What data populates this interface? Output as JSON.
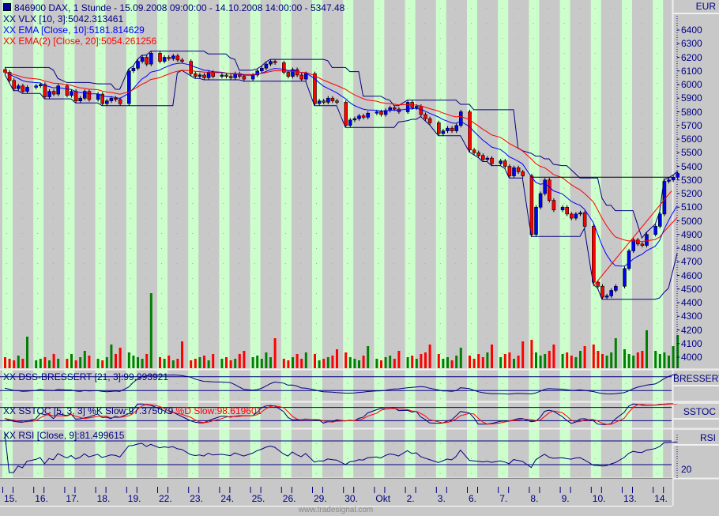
{
  "header": {
    "title": "846900  DAX, 1 Stunde - 15.09.2008 09:00:00 - 14.10.2008 14:00:00 - 5347.48",
    "vlx": "VLX [10, 3]:5042.313461",
    "ema": "EMA [Close, 10]:5181.814629",
    "ema2": "EMA(2) [Close, 20]:5054.261256",
    "prefix": "XX"
  },
  "panels": {
    "dss_label": "DSS-BRESSERT [21, 3]:99.993921",
    "sstoc_label_k": "SSTOC [5, 3, 3] %K Slow:97.375079",
    "sstoc_label_d": " %D Slow:98.619601",
    "rsi_label": "RSI [Close, 9]:81.499615",
    "right_dss": "BRESSERT",
    "right_sstoc": "SSTOC",
    "right_rsi": "RSI",
    "rsi_tick": "20"
  },
  "price_axis": {
    "currency": "EUR",
    "ticks": [
      "6400",
      "6300",
      "6200",
      "6100",
      "6000",
      "5900",
      "5800",
      "5700",
      "5600",
      "5500",
      "5400",
      "5300",
      "5200",
      "5100",
      "5000",
      "4900",
      "4800",
      "4700",
      "4600",
      "4500",
      "4400",
      "4300",
      "4200",
      "4100",
      "4000"
    ]
  },
  "footer": "www.tradesignal.com",
  "colors": {
    "background": "#c8c8c8",
    "stripe": "#ccffcc",
    "navy": "#000080",
    "ema": "#0000ff",
    "ema2": "#ff0000",
    "up": "#0000ff",
    "down": "#ff0000"
  },
  "chart_data": {
    "type": "candlestick",
    "title": "846900  DAX, 1 Stunde - 15.09.2008 09:00:00 - 14.10.2008 14:00:00 - 5347.48",
    "x_tick_labels": [
      "15.",
      "16.",
      "17.",
      "18.",
      "19.",
      "22.",
      "23.",
      "24.",
      "25.",
      "26.",
      "29.",
      "30.",
      "Okt",
      "2.",
      "3.",
      "6.",
      "7.",
      "8.",
      "9.",
      "10.",
      "13.",
      "14."
    ],
    "ylim": [
      3950,
      6500
    ],
    "bars_per_day": 6,
    "close": [
      6090,
      6030,
      5970,
      5990,
      5950,
      5980,
      5990,
      6000,
      5910,
      5950,
      5930,
      5990,
      5920,
      5950,
      5880,
      5900,
      5950,
      5890,
      5930,
      5860,
      5880,
      5900,
      5890,
      5860,
      6100,
      6120,
      6170,
      6200,
      6150,
      6230,
      6170,
      6200,
      6190,
      6210,
      6180,
      6170,
      6080,
      6060,
      6070,
      6050,
      6090,
      6060,
      6070,
      6060,
      6050,
      6080,
      6060,
      6040,
      6070,
      6100,
      6120,
      6150,
      6170,
      6160,
      6090,
      6060,
      6110,
      6070,
      6040,
      6080,
      5860,
      5880,
      5870,
      5900,
      5880,
      5870,
      5700,
      5740,
      5750,
      5770,
      5760,
      5790,
      5800,
      5780,
      5810,
      5830,
      5820,
      5800,
      5870,
      5830,
      5840,
      5780,
      5750,
      5720,
      5640,
      5660,
      5680,
      5660,
      5700,
      5800,
      5520,
      5500,
      5480,
      5450,
      5460,
      5420,
      5440,
      5400,
      5330,
      5390,
      5360,
      5330,
      4900,
      5100,
      5200,
      5300,
      5150,
      5080,
      5100,
      5050,
      5020,
      5050,
      5060,
      4960,
      4550,
      4520,
      4440,
      4450,
      4490,
      4520,
      4650,
      4780,
      4860,
      4830,
      4820,
      4900,
      4960,
      5050,
      5290,
      5300,
      5320,
      5347.48
    ],
    "volume": [
      14,
      12,
      10,
      16,
      12,
      40,
      10,
      12,
      14,
      10,
      18,
      12,
      12,
      18,
      10,
      14,
      22,
      16,
      12,
      10,
      14,
      30,
      18,
      26,
      20,
      16,
      14,
      12,
      18,
      95,
      14,
      12,
      16,
      10,
      12,
      34,
      10,
      12,
      14,
      16,
      10,
      18,
      12,
      14,
      10,
      12,
      18,
      22,
      14,
      16,
      12,
      20,
      14,
      38,
      12,
      10,
      14,
      18,
      12,
      20,
      18,
      10,
      12,
      14,
      16,
      24,
      20,
      14,
      12,
      10,
      16,
      28,
      12,
      10,
      14,
      16,
      12,
      22,
      14,
      16,
      12,
      18,
      20,
      30,
      18,
      12,
      14,
      10,
      16,
      26,
      16,
      12,
      18,
      14,
      20,
      30,
      14,
      18,
      20,
      12,
      16,
      34,
      36,
      20,
      16,
      18,
      22,
      30,
      18,
      20,
      16,
      14,
      22,
      28,
      30,
      22,
      18,
      16,
      20,
      38,
      24,
      18,
      16,
      20,
      22,
      48,
      22,
      18,
      20,
      16,
      28,
      42
    ],
    "overlays": [
      {
        "name": "VLX [10, 3]",
        "color": "#000080"
      },
      {
        "name": "EMA [Close, 10]",
        "color": "#0000ff"
      },
      {
        "name": "EMA(2) [Close, 20]",
        "color": "#ff0000"
      }
    ],
    "horizontal_line": 5320
  }
}
